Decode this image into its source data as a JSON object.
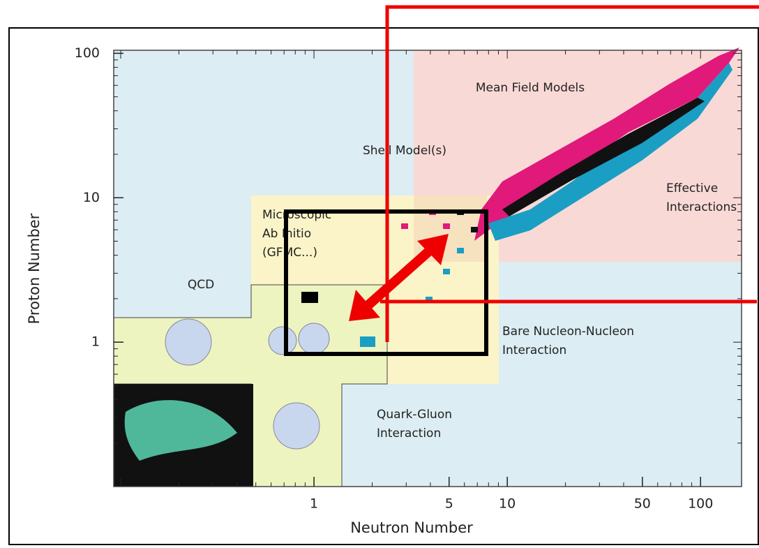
{
  "chart_data": {
    "type": "region-map",
    "x_label": "Neutron Number",
    "y_label": "Proton Number",
    "x_log": true,
    "y_log": true,
    "xlim": [
      0.092,
      163
    ],
    "ylim": [
      0.1,
      105
    ],
    "xticks": [
      1,
      5,
      10,
      50,
      100
    ],
    "yticks": [
      1,
      10,
      100
    ],
    "annotations": [
      {
        "lines": [
          "Mean Field Models"
        ]
      },
      {
        "lines": [
          "Shell Model(s)"
        ]
      },
      {
        "lines": [
          "Effective",
          "Interactions"
        ]
      },
      {
        "lines": [
          "Microscopic",
          "Ab Initio",
          "(GFMC...)"
        ]
      },
      {
        "lines": [
          "QCD"
        ]
      },
      {
        "lines": [
          "Bare Nucleon-Nucleon",
          "Interaction"
        ]
      },
      {
        "lines": [
          "Quark-Gluon",
          "Interaction"
        ]
      }
    ]
  }
}
